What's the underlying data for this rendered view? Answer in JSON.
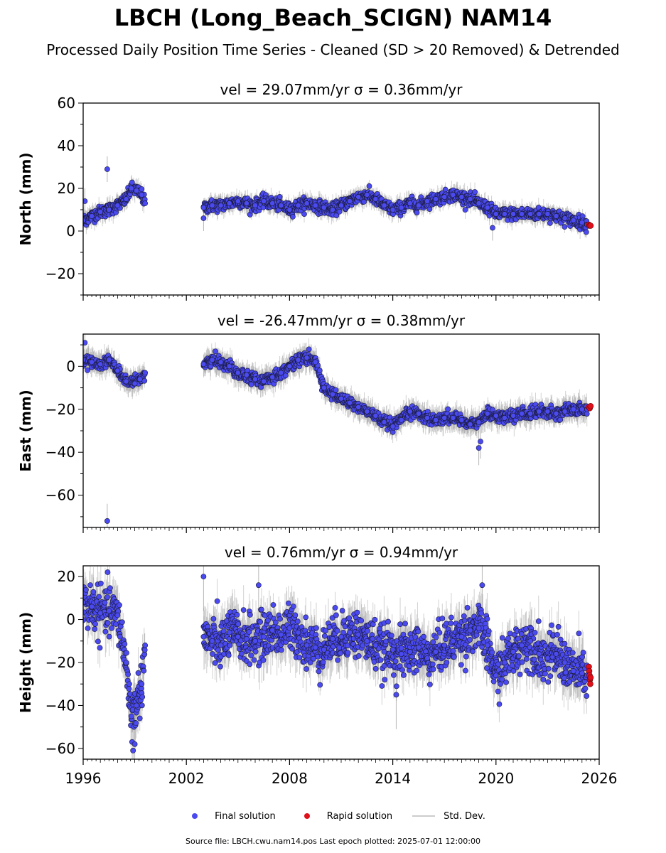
{
  "title": "LBCH (Long_Beach_SCIGN) NAM14",
  "subtitle": "Processed Daily Position Time Series - Cleaned (SD > 20 Removed) & Detrended",
  "footer": "Source file: LBCH.cwu.nam14.pos  Last epoch plotted: 2025-07-01 12:00:00",
  "colors": {
    "final_fill": "#4a4af0",
    "final_edge": "#1a1a3a",
    "rapid_fill": "#e0101a",
    "stddev": "#999999"
  },
  "legend": [
    {
      "label": "Final solution",
      "kind": "dot",
      "color": "#4a4af0"
    },
    {
      "label": "Rapid solution",
      "kind": "dot",
      "color": "#e0101a"
    },
    {
      "label": "Std. Dev.",
      "kind": "line",
      "color": "#cccccc"
    }
  ],
  "chart_data": [
    {
      "type": "scatter",
      "panel": "north",
      "title": "vel = 29.07mm/yr   σ = 0.36mm/yr",
      "ylabel": "North (mm)",
      "ylim": [
        -30,
        60
      ],
      "yticks": [
        -20,
        0,
        20,
        40,
        60
      ],
      "xlim": [
        1996,
        2026
      ],
      "xticks": [
        1996,
        2002,
        2008,
        2014,
        2020,
        2026
      ],
      "show_xticklabels": false,
      "grid": false,
      "series": [
        {
          "name": "Final solution",
          "role": "final",
          "x": [
            1996.0,
            1996.5,
            1997.0,
            1997.5,
            1998.0,
            1998.5,
            1998.8,
            1999.1,
            1999.4,
            1999.6,
            2003.0,
            2003.5,
            2004.0,
            2004.5,
            2005.0,
            2005.5,
            2006.0,
            2006.5,
            2007.0,
            2007.5,
            2008.0,
            2008.5,
            2009.0,
            2009.5,
            2010.0,
            2010.5,
            2011.0,
            2011.5,
            2012.0,
            2012.5,
            2013.0,
            2013.5,
            2014.0,
            2014.5,
            2015.0,
            2015.5,
            2016.0,
            2016.5,
            2017.0,
            2017.5,
            2018.0,
            2018.5,
            2019.0,
            2019.5,
            2020.0,
            2020.5,
            2021.0,
            2021.5,
            2022.0,
            2022.5,
            2023.0,
            2023.5,
            2024.0,
            2024.5,
            2025.0,
            2025.3
          ],
          "y": [
            5,
            7,
            9,
            10,
            12,
            15,
            20,
            19,
            17,
            13,
            11,
            12,
            12,
            13,
            14,
            13,
            12,
            14,
            13,
            12,
            10,
            12,
            13,
            12,
            11,
            10,
            12,
            14,
            16,
            17,
            15,
            12,
            10,
            11,
            13,
            12,
            14,
            15,
            16,
            17,
            16,
            15,
            13,
            11,
            8,
            8,
            8,
            8,
            8,
            8,
            8,
            7,
            6,
            5,
            4,
            3
          ]
        },
        {
          "name": "Rapid solution",
          "role": "rapid",
          "x": [
            2025.4,
            2025.45,
            2025.5
          ],
          "y": [
            3,
            2.5,
            2.5
          ]
        }
      ],
      "outliers": {
        "x": [
          1997.4,
          2019.8,
          1996.1,
          2003.0
        ],
        "y": [
          29,
          1.5,
          14,
          6
        ]
      }
    },
    {
      "type": "scatter",
      "panel": "east",
      "title": "vel = -26.47mm/yr   σ = 0.38mm/yr",
      "ylabel": "East (mm)",
      "ylim": [
        -75,
        15
      ],
      "yticks": [
        -60,
        -40,
        -20,
        0
      ],
      "xlim": [
        1996,
        2026
      ],
      "xticks": [
        1996,
        2002,
        2008,
        2014,
        2020,
        2026
      ],
      "show_xticklabels": false,
      "grid": false,
      "series": [
        {
          "name": "Final solution",
          "role": "final",
          "x": [
            1996.0,
            1996.5,
            1997.0,
            1997.5,
            1998.0,
            1998.5,
            1999.0,
            1999.3,
            1999.6,
            2003.0,
            2003.5,
            2004.0,
            2004.5,
            2005.0,
            2005.5,
            2006.0,
            2006.5,
            2007.0,
            2007.5,
            2008.0,
            2008.5,
            2009.0,
            2009.5,
            2010.0,
            2010.5,
            2011.0,
            2011.5,
            2012.0,
            2012.5,
            2013.0,
            2013.5,
            2014.0,
            2014.5,
            2015.0,
            2015.5,
            2016.0,
            2016.5,
            2017.0,
            2017.5,
            2018.0,
            2018.5,
            2019.0,
            2019.5,
            2020.0,
            2020.5,
            2021.0,
            2021.5,
            2022.0,
            2022.5,
            2023.0,
            2023.5,
            2024.0,
            2024.5,
            2025.0,
            2025.3
          ],
          "y": [
            3,
            2,
            1,
            3,
            -2,
            -7,
            -8,
            -6,
            -3,
            1,
            3,
            2,
            0,
            -3,
            -4,
            -6,
            -7,
            -5,
            -3,
            0,
            3,
            4,
            2,
            -10,
            -13,
            -15,
            -17,
            -19,
            -21,
            -23,
            -26,
            -28,
            -25,
            -21,
            -22,
            -24,
            -25,
            -24,
            -24,
            -25,
            -27,
            -26,
            -22,
            -23,
            -24,
            -23,
            -22,
            -22,
            -21,
            -21,
            -22,
            -21,
            -20,
            -20,
            -20
          ]
        },
        {
          "name": "Rapid solution",
          "role": "rapid",
          "x": [
            2025.4,
            2025.45,
            2025.5
          ],
          "y": [
            -19,
            -19.5,
            -18.5
          ]
        }
      ],
      "outliers": {
        "x": [
          1997.4,
          1996.1,
          2019.0,
          2019.1
        ],
        "y": [
          -72,
          11,
          -38,
          -35
        ]
      }
    },
    {
      "type": "scatter",
      "panel": "height",
      "title": "vel = 0.76mm/yr   σ = 0.94mm/yr",
      "ylabel": "Height (mm)",
      "ylim": [
        -65,
        25
      ],
      "yticks": [
        -60,
        -40,
        -20,
        0,
        20
      ],
      "xlim": [
        1996,
        2026
      ],
      "xticks": [
        1996,
        2002,
        2008,
        2014,
        2020,
        2026
      ],
      "show_xticklabels": true,
      "grid": false,
      "series": [
        {
          "name": "Final solution",
          "role": "final",
          "x": [
            1996.0,
            1996.5,
            1997.0,
            1997.5,
            1998.0,
            1998.5,
            1998.8,
            1999.1,
            1999.4,
            1999.6,
            2003.0,
            2003.5,
            2004.0,
            2004.5,
            2005.0,
            2005.5,
            2006.0,
            2006.5,
            2007.0,
            2007.5,
            2008.0,
            2008.5,
            2009.0,
            2009.5,
            2010.0,
            2010.5,
            2011.0,
            2011.5,
            2012.0,
            2012.5,
            2013.0,
            2013.5,
            2014.0,
            2014.5,
            2015.0,
            2015.5,
            2016.0,
            2016.5,
            2017.0,
            2017.5,
            2018.0,
            2018.5,
            2019.0,
            2019.5,
            2020.0,
            2020.5,
            2021.0,
            2021.5,
            2022.0,
            2022.5,
            2023.0,
            2023.5,
            2024.0,
            2024.5,
            2025.0,
            2025.3
          ],
          "y": [
            8,
            6,
            3,
            4,
            2,
            -20,
            -45,
            -40,
            -30,
            -12,
            -8,
            -10,
            -12,
            -6,
            -8,
            -9,
            -10,
            -8,
            -5,
            -7,
            -4,
            -6,
            -12,
            -13,
            -14,
            -9,
            -8,
            -6,
            -7,
            -10,
            -12,
            -15,
            -14,
            -16,
            -15,
            -13,
            -18,
            -15,
            -12,
            -10,
            -8,
            -5,
            -4,
            -12,
            -26,
            -20,
            -15,
            -12,
            -10,
            -16,
            -18,
            -16,
            -20,
            -24,
            -25,
            -26
          ]
        },
        {
          "name": "Rapid solution",
          "role": "rapid",
          "x": [
            2025.4,
            2025.42,
            2025.44,
            2025.46,
            2025.48,
            2025.5
          ],
          "y": [
            -22,
            -24,
            -26,
            -28,
            -30,
            -27
          ]
        }
      ],
      "outliers": {
        "x": [
          2003.0,
          1998.9,
          1999.0,
          2019.2,
          2014.2,
          2006.2
        ],
        "y": [
          20,
          -61,
          -58,
          16,
          -35,
          16
        ]
      }
    }
  ]
}
